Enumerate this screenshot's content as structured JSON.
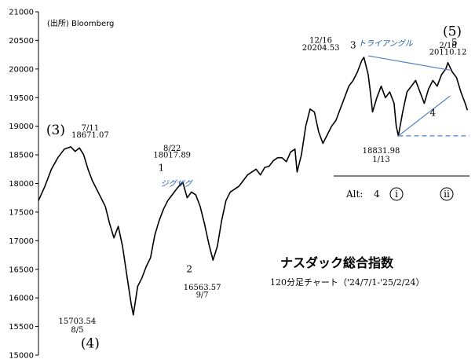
{
  "source": "(出所) Bloomberg",
  "title": "ナスダック総合指数",
  "subtitle": "120分足チャート（'24/7/1-'25/2/24）",
  "chart_data": {
    "type": "line",
    "title": "ナスダック総合指数",
    "ylim": [
      15000,
      21000
    ],
    "yticks": [
      15000,
      15500,
      16000,
      16500,
      17000,
      17500,
      18000,
      18500,
      19000,
      19500,
      20000,
      20500,
      21000
    ],
    "ytick_labels": [
      "15000",
      "15500",
      "16000",
      "16500",
      "17000",
      "17500",
      "18000",
      "18500",
      "19000",
      "19500",
      "20000",
      "20500",
      "21000"
    ],
    "grid": false,
    "series": [
      {
        "name": "",
        "color": "#000000",
        "points": [
          [
            0,
            17700
          ],
          [
            3,
            17950
          ],
          [
            6,
            18250
          ],
          [
            9,
            18450
          ],
          [
            12,
            18600
          ],
          [
            15,
            18640
          ],
          [
            17,
            18560
          ],
          [
            19,
            18620
          ],
          [
            21,
            18500
          ],
          [
            23,
            18250
          ],
          [
            25,
            18050
          ],
          [
            27,
            17900
          ],
          [
            29,
            17750
          ],
          [
            31,
            17600
          ],
          [
            33,
            17300
          ],
          [
            35,
            17050
          ],
          [
            37,
            17250
          ],
          [
            39,
            16900
          ],
          [
            41,
            16400
          ],
          [
            43,
            15900
          ],
          [
            44,
            15703
          ],
          [
            46,
            16200
          ],
          [
            48,
            16350
          ],
          [
            50,
            16550
          ],
          [
            52,
            16700
          ],
          [
            54,
            17100
          ],
          [
            56,
            17350
          ],
          [
            58,
            17550
          ],
          [
            60,
            17700
          ],
          [
            62,
            17800
          ],
          [
            64,
            17900
          ],
          [
            66,
            17990
          ],
          [
            67,
            18017
          ],
          [
            69,
            17750
          ],
          [
            71,
            17850
          ],
          [
            73,
            17800
          ],
          [
            75,
            17600
          ],
          [
            77,
            17300
          ],
          [
            79,
            16950
          ],
          [
            81,
            16660
          ],
          [
            83,
            16900
          ],
          [
            85,
            17350
          ],
          [
            87,
            17700
          ],
          [
            89,
            17850
          ],
          [
            91,
            17900
          ],
          [
            93,
            17950
          ],
          [
            95,
            18050
          ],
          [
            97,
            18150
          ],
          [
            99,
            18200
          ],
          [
            101,
            18250
          ],
          [
            103,
            18150
          ],
          [
            105,
            18280
          ],
          [
            107,
            18300
          ],
          [
            109,
            18400
          ],
          [
            111,
            18450
          ],
          [
            113,
            18450
          ],
          [
            115,
            18380
          ],
          [
            117,
            18550
          ],
          [
            119,
            18600
          ],
          [
            120,
            18200
          ],
          [
            122,
            18500
          ],
          [
            124,
            19000
          ],
          [
            126,
            19300
          ],
          [
            128,
            19250
          ],
          [
            130,
            18900
          ],
          [
            132,
            18700
          ],
          [
            134,
            18850
          ],
          [
            136,
            19000
          ],
          [
            138,
            19100
          ],
          [
            140,
            19300
          ],
          [
            142,
            19500
          ],
          [
            144,
            19700
          ],
          [
            146,
            19800
          ],
          [
            148,
            19950
          ],
          [
            150,
            20150
          ],
          [
            151,
            20204
          ],
          [
            153,
            19900
          ],
          [
            154,
            19600
          ],
          [
            155,
            19250
          ],
          [
            157,
            19500
          ],
          [
            159,
            19700
          ],
          [
            161,
            19500
          ],
          [
            163,
            19600
          ],
          [
            165,
            19400
          ],
          [
            166,
            19000
          ],
          [
            167,
            18832
          ],
          [
            169,
            19250
          ],
          [
            171,
            19600
          ],
          [
            173,
            19700
          ],
          [
            175,
            19800
          ],
          [
            177,
            19600
          ],
          [
            179,
            19400
          ],
          [
            181,
            19650
          ],
          [
            183,
            19800
          ],
          [
            185,
            19700
          ],
          [
            187,
            19900
          ],
          [
            189,
            20000
          ],
          [
            190,
            20110
          ],
          [
            192,
            19950
          ],
          [
            194,
            19850
          ],
          [
            196,
            19600
          ],
          [
            198,
            19400
          ],
          [
            199,
            19280
          ]
        ]
      }
    ],
    "lines": [
      {
        "from": [
          153,
          20230
        ],
        "to": [
          191,
          19980
        ],
        "color": "#4f81bd",
        "style": "solid"
      },
      {
        "from": [
          167,
          18832
        ],
        "to": [
          191,
          19530
        ],
        "color": "#4f81bd",
        "style": "solid"
      },
      {
        "from": [
          167,
          18832
        ],
        "to": [
          200,
          18832
        ],
        "color": "#4f81bd",
        "style": "dashed"
      }
    ],
    "annotations": [
      {
        "text": "7/11",
        "x": 24,
        "y": 18930
      },
      {
        "text": "18671.07",
        "x": 24,
        "y": 18800
      },
      {
        "text": "8/22",
        "x": 62,
        "y": 18570
      },
      {
        "text": "18017.89",
        "x": 62,
        "y": 18450
      },
      {
        "text": "15703.54",
        "x": 18,
        "y": 15550
      },
      {
        "text": "8/5",
        "x": 18,
        "y": 15400
      },
      {
        "text": "16563.57",
        "x": 76,
        "y": 16140
      },
      {
        "text": "9/7",
        "x": 76,
        "y": 16010
      },
      {
        "text": "12/16",
        "x": 131,
        "y": 20460
      },
      {
        "text": "20204.53",
        "x": 131,
        "y": 20330
      },
      {
        "text": "2/18",
        "x": 190,
        "y": 20370
      },
      {
        "text": "20110.12",
        "x": 190,
        "y": 20250
      },
      {
        "text": "18831.98",
        "x": 159,
        "y": 18530
      },
      {
        "text": "1/13",
        "x": 159,
        "y": 18380
      }
    ],
    "pattern_labels": [
      {
        "text": "トライアングル",
        "x": 161,
        "y": 20400
      },
      {
        "text": "ジグザグ",
        "x": 64,
        "y": 17950
      }
    ],
    "wave_labels": [
      {
        "text": "(3)",
        "x": 8,
        "y": 18860,
        "size": "big"
      },
      {
        "text": "(4)",
        "x": 24,
        "y": 15130,
        "size": "big"
      },
      {
        "text": "(5)",
        "x": 192,
        "y": 20580,
        "size": "big"
      },
      {
        "text": "1",
        "x": 57,
        "y": 18220,
        "size": "small"
      },
      {
        "text": "2",
        "x": 70,
        "y": 16450,
        "size": "small"
      },
      {
        "text": "3",
        "x": 146,
        "y": 20360,
        "size": "small"
      },
      {
        "text": "4",
        "x": 183,
        "y": 19180,
        "size": "small"
      },
      {
        "text": "5",
        "x": 193,
        "y": 20410,
        "size": "small"
      }
    ],
    "alt_legend": {
      "label": "Alt:",
      "wave": "4",
      "subwaves": [
        "i",
        "ii"
      ]
    }
  }
}
